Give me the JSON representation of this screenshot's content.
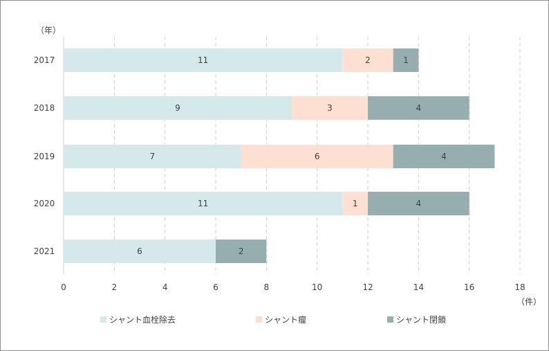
{
  "chart_data": {
    "type": "bar",
    "orientation": "horizontal",
    "stacked": true,
    "categories": [
      "2017",
      "2018",
      "2019",
      "2020",
      "2021"
    ],
    "series": [
      {
        "name": "シャント血栓除去",
        "values": [
          11,
          9,
          7,
          11,
          6
        ],
        "color": "#d5e9eb"
      },
      {
        "name": "シャント瘤",
        "values": [
          2,
          3,
          6,
          1,
          0
        ],
        "color": "#fde0d1"
      },
      {
        "name": "シャント閉鎖",
        "values": [
          1,
          4,
          4,
          4,
          2
        ],
        "color": "#96aeaf"
      }
    ],
    "xlim": [
      0,
      18
    ],
    "xticks": [
      0,
      2,
      4,
      6,
      8,
      10,
      12,
      14,
      16,
      18
    ],
    "category_axis_unit": "（年）",
    "value_axis_unit": "（件）",
    "grid": "vertical-dashed",
    "legend_position": "bottom"
  }
}
